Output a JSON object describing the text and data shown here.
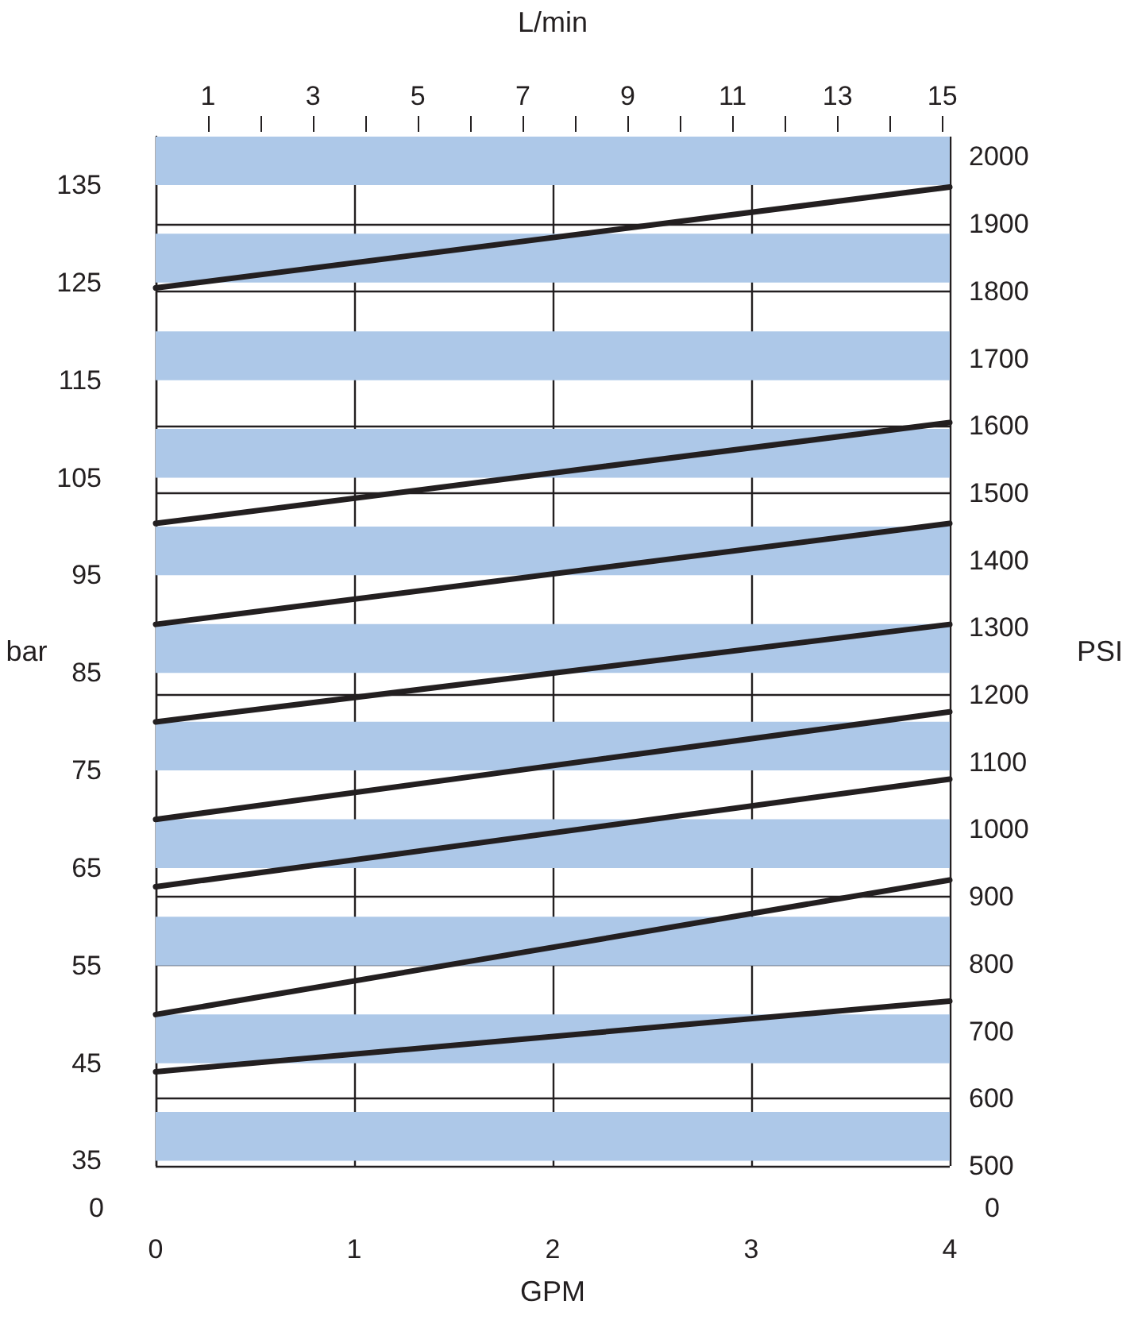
{
  "chart_data": {
    "type": "line",
    "xlabel": "GPM",
    "x2label": "L/min",
    "ylabel": "bar",
    "y2label": "PSI",
    "x": [
      0,
      4
    ],
    "series": [
      {
        "color": "#231f20",
        "axis": "y2",
        "values": [
          1805,
          1955
        ]
      },
      {
        "color": "#231f20",
        "axis": "y2",
        "values": [
          1455,
          1605
        ]
      },
      {
        "color": "#231f20",
        "axis": "y2",
        "values": [
          1305,
          1455
        ]
      },
      {
        "color": "#231f20",
        "axis": "y2",
        "values": [
          1160,
          1305
        ]
      },
      {
        "color": "#231f20",
        "axis": "y2",
        "values": [
          1015,
          1175
        ]
      },
      {
        "color": "#231f20",
        "axis": "y2",
        "values": [
          915,
          1075
        ]
      },
      {
        "color": "#231f20",
        "axis": "y2",
        "values": [
          725,
          925
        ]
      },
      {
        "color": "#231f20",
        "axis": "y2",
        "values": [
          640,
          745
        ]
      }
    ],
    "xlim": [
      0,
      4
    ],
    "xticks": [
      0,
      1,
      2,
      3,
      4
    ],
    "x2lim": [
      0,
      15.14
    ],
    "x2ticks": [
      1,
      {
        "value": 2,
        "label": null
      },
      3,
      {
        "value": 4,
        "label": null
      },
      5,
      {
        "value": 6,
        "label": null
      },
      7,
      {
        "value": 8,
        "label": null
      },
      9,
      {
        "value": 10,
        "label": null
      },
      11,
      {
        "value": 12,
        "label": null
      },
      13,
      {
        "value": 14,
        "label": null
      },
      15
    ],
    "ylim": [
      34.47,
      139.96
    ],
    "yticks": [
      35,
      45,
      55,
      65,
      75,
      85,
      95,
      105,
      115,
      125,
      135
    ],
    "y2lim": [
      500,
      2030
    ],
    "y2ticks": [
      500,
      600,
      700,
      800,
      900,
      1000,
      1100,
      1200,
      1300,
      1400,
      1500,
      1600,
      1700,
      1800,
      1900,
      2000
    ],
    "bands": [
      {
        "axis": "y",
        "from": 35,
        "to": 40,
        "color": "#adc8e8"
      },
      {
        "axis": "y",
        "from": 45,
        "to": 50,
        "color": "#adc8e8"
      },
      {
        "axis": "y",
        "from": 55,
        "to": 60,
        "color": "#adc8e8"
      },
      {
        "axis": "y",
        "from": 65,
        "to": 70,
        "color": "#adc8e8"
      },
      {
        "axis": "y",
        "from": 75,
        "to": 80,
        "color": "#adc8e8"
      },
      {
        "axis": "y",
        "from": 85,
        "to": 90,
        "color": "#adc8e8"
      },
      {
        "axis": "y",
        "from": 95,
        "to": 100,
        "color": "#adc8e8"
      },
      {
        "axis": "y",
        "from": 105,
        "to": 110,
        "color": "#adc8e8"
      },
      {
        "axis": "y",
        "from": 115,
        "to": 120,
        "color": "#adc8e8"
      },
      {
        "axis": "y",
        "from": 125,
        "to": 130,
        "color": "#adc8e8"
      },
      {
        "axis": "y",
        "from": 135,
        "to": 140,
        "color": "#adc8e8"
      }
    ],
    "annotations": [
      "0",
      "0"
    ],
    "grid": true
  }
}
